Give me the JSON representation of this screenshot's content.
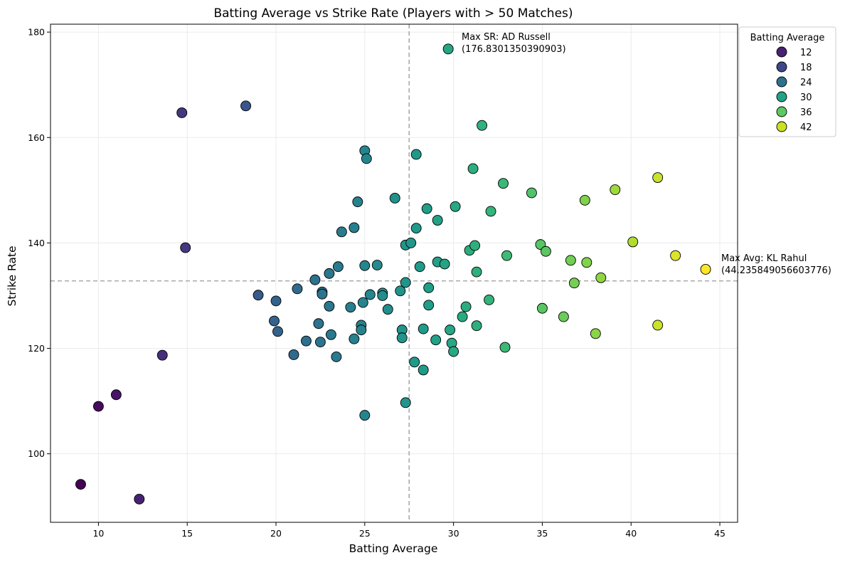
{
  "chart_data": {
    "type": "scatter",
    "title": "Batting Average vs Strike Rate (Players with > 50 Matches)",
    "xlabel": "Batting Average",
    "ylabel": "Strike Rate",
    "xlim": [
      7.3,
      46.0
    ],
    "ylim": [
      87.0,
      181.5
    ],
    "x_ticks": [
      10,
      15,
      20,
      25,
      30,
      35,
      40,
      45
    ],
    "y_ticks": [
      100,
      120,
      140,
      160,
      180
    ],
    "grid": true,
    "colormap": "viridis",
    "color_range": [
      9.0,
      44.2
    ],
    "reference_lines": {
      "vertical_x": 27.5,
      "horizontal_y": 132.8
    },
    "legend": {
      "title": "Batting Average",
      "placement": "top-right outside",
      "entries": [
        {
          "label": "12",
          "color": "#482173"
        },
        {
          "label": "18",
          "color": "#3f4788"
        },
        {
          "label": "24",
          "color": "#2c728e"
        },
        {
          "label": "30",
          "color": "#20a386"
        },
        {
          "label": "36",
          "color": "#5dc962"
        },
        {
          "label": "42",
          "color": "#cae11f"
        }
      ]
    },
    "annotations": [
      {
        "text_line1": "Max SR: AD Russell",
        "text_line2": "(176.8301350390903)",
        "x": 29.7,
        "y": 176.8
      },
      {
        "text_line1": "Max Avg: KL Rahul",
        "text_line2": "(44.235849056603776)",
        "x": 44.2,
        "y": 135.0
      }
    ],
    "points": [
      {
        "x": 9.0,
        "y": 94.2
      },
      {
        "x": 12.3,
        "y": 91.4
      },
      {
        "x": 10.0,
        "y": 109.0
      },
      {
        "x": 11.0,
        "y": 111.2
      },
      {
        "x": 13.6,
        "y": 118.7
      },
      {
        "x": 14.9,
        "y": 139.1
      },
      {
        "x": 14.7,
        "y": 164.7
      },
      {
        "x": 18.3,
        "y": 166.0
      },
      {
        "x": 19.0,
        "y": 130.1
      },
      {
        "x": 19.9,
        "y": 125.2
      },
      {
        "x": 20.0,
        "y": 129.0
      },
      {
        "x": 20.1,
        "y": 123.2
      },
      {
        "x": 21.0,
        "y": 118.8
      },
      {
        "x": 21.2,
        "y": 131.3
      },
      {
        "x": 21.7,
        "y": 121.4
      },
      {
        "x": 22.2,
        "y": 133.0
      },
      {
        "x": 22.4,
        "y": 124.7
      },
      {
        "x": 22.5,
        "y": 121.2
      },
      {
        "x": 22.6,
        "y": 130.7
      },
      {
        "x": 22.6,
        "y": 130.3
      },
      {
        "x": 23.0,
        "y": 134.2
      },
      {
        "x": 23.0,
        "y": 128.0
      },
      {
        "x": 23.1,
        "y": 122.6
      },
      {
        "x": 23.5,
        "y": 135.5
      },
      {
        "x": 23.4,
        "y": 118.4
      },
      {
        "x": 23.7,
        "y": 142.1
      },
      {
        "x": 24.2,
        "y": 127.8
      },
      {
        "x": 24.4,
        "y": 142.9
      },
      {
        "x": 24.4,
        "y": 121.8
      },
      {
        "x": 24.6,
        "y": 147.8
      },
      {
        "x": 24.8,
        "y": 124.4
      },
      {
        "x": 24.8,
        "y": 123.5
      },
      {
        "x": 24.9,
        "y": 128.7
      },
      {
        "x": 25.0,
        "y": 135.7
      },
      {
        "x": 25.0,
        "y": 157.5
      },
      {
        "x": 25.1,
        "y": 156.0
      },
      {
        "x": 25.0,
        "y": 107.3
      },
      {
        "x": 25.3,
        "y": 130.2
      },
      {
        "x": 25.7,
        "y": 135.8
      },
      {
        "x": 26.0,
        "y": 130.5
      },
      {
        "x": 26.0,
        "y": 130.0
      },
      {
        "x": 26.3,
        "y": 127.4
      },
      {
        "x": 26.7,
        "y": 148.5
      },
      {
        "x": 27.0,
        "y": 130.9
      },
      {
        "x": 27.1,
        "y": 123.5
      },
      {
        "x": 27.1,
        "y": 122.0
      },
      {
        "x": 27.3,
        "y": 132.5
      },
      {
        "x": 27.3,
        "y": 139.6
      },
      {
        "x": 27.3,
        "y": 109.7
      },
      {
        "x": 27.6,
        "y": 140.0
      },
      {
        "x": 27.8,
        "y": 117.4
      },
      {
        "x": 27.9,
        "y": 156.8
      },
      {
        "x": 27.9,
        "y": 142.8
      },
      {
        "x": 28.1,
        "y": 135.5
      },
      {
        "x": 28.3,
        "y": 123.7
      },
      {
        "x": 28.3,
        "y": 115.9
      },
      {
        "x": 28.5,
        "y": 146.5
      },
      {
        "x": 28.6,
        "y": 131.5
      },
      {
        "x": 28.6,
        "y": 128.2
      },
      {
        "x": 29.0,
        "y": 121.6
      },
      {
        "x": 29.1,
        "y": 144.3
      },
      {
        "x": 29.1,
        "y": 136.4
      },
      {
        "x": 29.5,
        "y": 136.0
      },
      {
        "x": 29.7,
        "y": 176.8
      },
      {
        "x": 29.8,
        "y": 123.5
      },
      {
        "x": 29.9,
        "y": 121.0
      },
      {
        "x": 30.0,
        "y": 119.4
      },
      {
        "x": 30.1,
        "y": 146.9
      },
      {
        "x": 30.5,
        "y": 126.0
      },
      {
        "x": 30.7,
        "y": 127.9
      },
      {
        "x": 30.9,
        "y": 138.6
      },
      {
        "x": 31.2,
        "y": 139.5
      },
      {
        "x": 31.1,
        "y": 154.1
      },
      {
        "x": 31.3,
        "y": 134.5
      },
      {
        "x": 31.3,
        "y": 124.3
      },
      {
        "x": 31.6,
        "y": 162.3
      },
      {
        "x": 32.0,
        "y": 129.2
      },
      {
        "x": 32.1,
        "y": 146.0
      },
      {
        "x": 32.8,
        "y": 151.3
      },
      {
        "x": 32.9,
        "y": 120.2
      },
      {
        "x": 33.0,
        "y": 137.6
      },
      {
        "x": 34.4,
        "y": 149.5
      },
      {
        "x": 34.9,
        "y": 139.7
      },
      {
        "x": 35.0,
        "y": 127.6
      },
      {
        "x": 35.2,
        "y": 138.4
      },
      {
        "x": 36.2,
        "y": 126.0
      },
      {
        "x": 36.6,
        "y": 136.7
      },
      {
        "x": 36.8,
        "y": 132.4
      },
      {
        "x": 37.4,
        "y": 148.1
      },
      {
        "x": 37.5,
        "y": 136.3
      },
      {
        "x": 38.0,
        "y": 122.8
      },
      {
        "x": 38.3,
        "y": 133.4
      },
      {
        "x": 39.1,
        "y": 150.1
      },
      {
        "x": 40.1,
        "y": 140.2
      },
      {
        "x": 41.5,
        "y": 152.4
      },
      {
        "x": 41.5,
        "y": 124.4
      },
      {
        "x": 42.5,
        "y": 137.6
      },
      {
        "x": 44.2,
        "y": 135.0
      }
    ]
  }
}
